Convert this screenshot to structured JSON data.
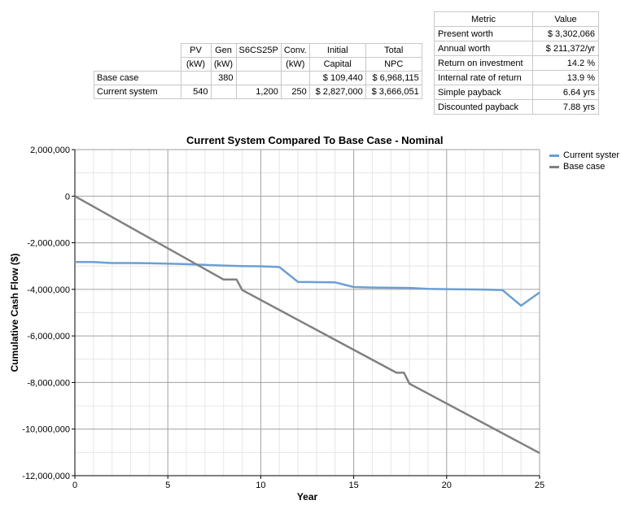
{
  "comparison_table": {
    "headers_row1": [
      "PV",
      "Gen",
      "S6CS25P",
      "Conv.",
      "Initial",
      "Total"
    ],
    "headers_row2": [
      "(kW)",
      "(kW)",
      "",
      "(kW)",
      "Capital",
      "NPC"
    ],
    "rows": [
      {
        "label": "Base case",
        "pv": "",
        "gen": "380",
        "s6": "",
        "conv": "",
        "initial": "$ 109,440",
        "npc": "$ 6,968,115"
      },
      {
        "label": "Current system",
        "pv": "540",
        "gen": "",
        "s6": "1,200",
        "conv": "250",
        "initial": "$ 2,827,000",
        "npc": "$ 3,666,051"
      }
    ]
  },
  "metrics_table": {
    "headers": [
      "Metric",
      "Value"
    ],
    "rows": [
      {
        "metric": "Present worth",
        "value": "$ 3,302,066"
      },
      {
        "metric": "Annual worth",
        "value": "$ 211,372/yr"
      },
      {
        "metric": "Return on investment",
        "value": "14.2 %"
      },
      {
        "metric": "Internal rate of return",
        "value": "13.9 %"
      },
      {
        "metric": "Simple payback",
        "value": "6.64 yrs"
      },
      {
        "metric": "Discounted payback",
        "value": "7.88 yrs"
      }
    ]
  },
  "colors": {
    "current": "#6b9fd4",
    "base": "#808080",
    "grid": "#c8c8c8",
    "axis": "#000000"
  },
  "chart_data": {
    "type": "line",
    "title": "Current System Compared To Base Case - Nominal",
    "xlabel": "Year",
    "ylabel": "Cumulative Cash Flow ($)",
    "xlim": [
      0,
      25
    ],
    "ylim": [
      -12000000,
      2000000
    ],
    "x_ticks": [
      0,
      5,
      10,
      15,
      20,
      25
    ],
    "x_tick_labels": [
      "0",
      "5",
      "10",
      "15",
      "20",
      "25"
    ],
    "y_ticks": [
      2000000,
      0,
      -2000000,
      -4000000,
      -6000000,
      -8000000,
      -10000000,
      -12000000
    ],
    "y_tick_labels": [
      "2,000,000",
      "0",
      "-2,000,000",
      "-4,000,000",
      "-6,000,000",
      "-8,000,000",
      "-10,000,000",
      "-12,000,000"
    ],
    "grid": true,
    "legend_position": "top-right",
    "series": [
      {
        "name": "Current syster",
        "color": "#6b9fd4",
        "points": [
          [
            0,
            -2827000
          ],
          [
            1,
            -2830000
          ],
          [
            2,
            -2870000
          ],
          [
            3,
            -2870000
          ],
          [
            4,
            -2880000
          ],
          [
            5,
            -2900000
          ],
          [
            6,
            -2920000
          ],
          [
            7,
            -2950000
          ],
          [
            8,
            -2980000
          ],
          [
            9,
            -3000000
          ],
          [
            10,
            -3010000
          ],
          [
            11,
            -3040000
          ],
          [
            12,
            -3680000
          ],
          [
            13,
            -3690000
          ],
          [
            14,
            -3700000
          ],
          [
            15,
            -3900000
          ],
          [
            16,
            -3920000
          ],
          [
            17,
            -3930000
          ],
          [
            18,
            -3940000
          ],
          [
            19,
            -3980000
          ],
          [
            20,
            -3990000
          ],
          [
            21,
            -4000000
          ],
          [
            22,
            -4010000
          ],
          [
            23,
            -4030000
          ],
          [
            24,
            -4700000
          ],
          [
            25,
            -4130000
          ]
        ]
      },
      {
        "name": "Base case",
        "color": "#808080",
        "points": [
          [
            0,
            0
          ],
          [
            8,
            -3580000
          ],
          [
            8.7,
            -3580000
          ],
          [
            9,
            -4030000
          ],
          [
            17.3,
            -7580000
          ],
          [
            17.7,
            -7580000
          ],
          [
            18,
            -8050000
          ],
          [
            25,
            -11030000
          ]
        ]
      }
    ]
  }
}
